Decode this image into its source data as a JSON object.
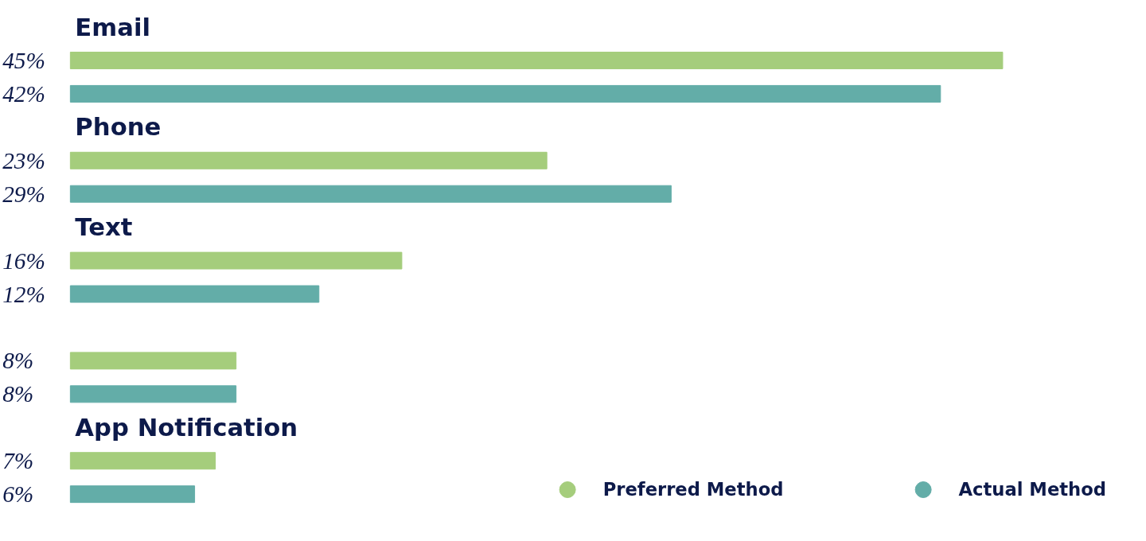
{
  "chart_data": {
    "type": "bar",
    "orientation": "horizontal",
    "categories": [
      "Email",
      "Phone",
      "Text",
      null,
      "App Notification"
    ],
    "series": [
      {
        "name": "Preferred Method",
        "color": "#a5cd7c",
        "values": [
          45,
          23,
          16,
          8,
          7
        ],
        "value_labels": [
          "45%",
          "23%",
          "16%",
          "8%",
          "7%"
        ]
      },
      {
        "name": "Actual Method",
        "color": "#63ada8",
        "values": [
          42,
          29,
          12,
          8,
          6
        ],
        "value_labels": [
          "42%",
          "29%",
          "12%",
          "8%",
          "6%"
        ]
      }
    ],
    "legend": "bottom right",
    "grid": false
  }
}
